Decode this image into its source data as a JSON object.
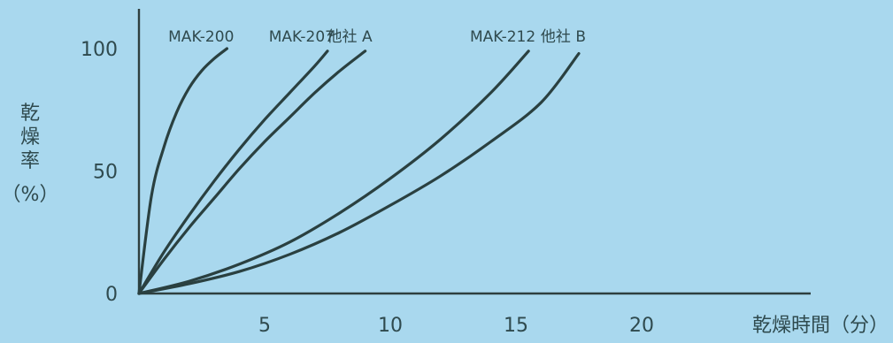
{
  "chart_data": {
    "type": "line",
    "xlabel": "乾燥時間（分）",
    "ylabel_lines": [
      "乾",
      "燥",
      "率",
      "（%）"
    ],
    "xlim": [
      0,
      25
    ],
    "ylim": [
      0,
      100
    ],
    "xticks": [
      "5",
      "10",
      "15",
      "20"
    ],
    "yticks": [
      "0",
      "50",
      "100"
    ],
    "series": [
      {
        "name": "MAK-200",
        "x": [
          0,
          0.5,
          1,
          1.5,
          2,
          2.5,
          3,
          3.5
        ],
        "y": [
          0,
          40,
          60,
          74,
          84,
          91,
          96,
          100
        ]
      },
      {
        "name": "MAK-207",
        "x": [
          0,
          1,
          2,
          3,
          4,
          5,
          6,
          7,
          7.5
        ],
        "y": [
          0,
          17,
          32,
          46,
          59,
          71,
          82,
          93,
          99
        ]
      },
      {
        "name": "他社 A",
        "x": [
          0,
          1,
          2,
          3,
          4,
          5,
          6,
          7,
          8,
          9
        ],
        "y": [
          0,
          14,
          27,
          39,
          51,
          62,
          72,
          82,
          91,
          99
        ]
      },
      {
        "name": "MAK-212",
        "x": [
          0,
          2,
          4,
          6,
          8,
          10,
          12,
          14,
          15.5
        ],
        "y": [
          0,
          5,
          12,
          21,
          33,
          47,
          63,
          82,
          99
        ]
      },
      {
        "name": "他社 B",
        "x": [
          0,
          2,
          4,
          6,
          8,
          10,
          12,
          14,
          16,
          17.5
        ],
        "y": [
          0,
          4,
          9,
          16,
          25,
          36,
          48,
          62,
          78,
          98
        ]
      }
    ]
  }
}
